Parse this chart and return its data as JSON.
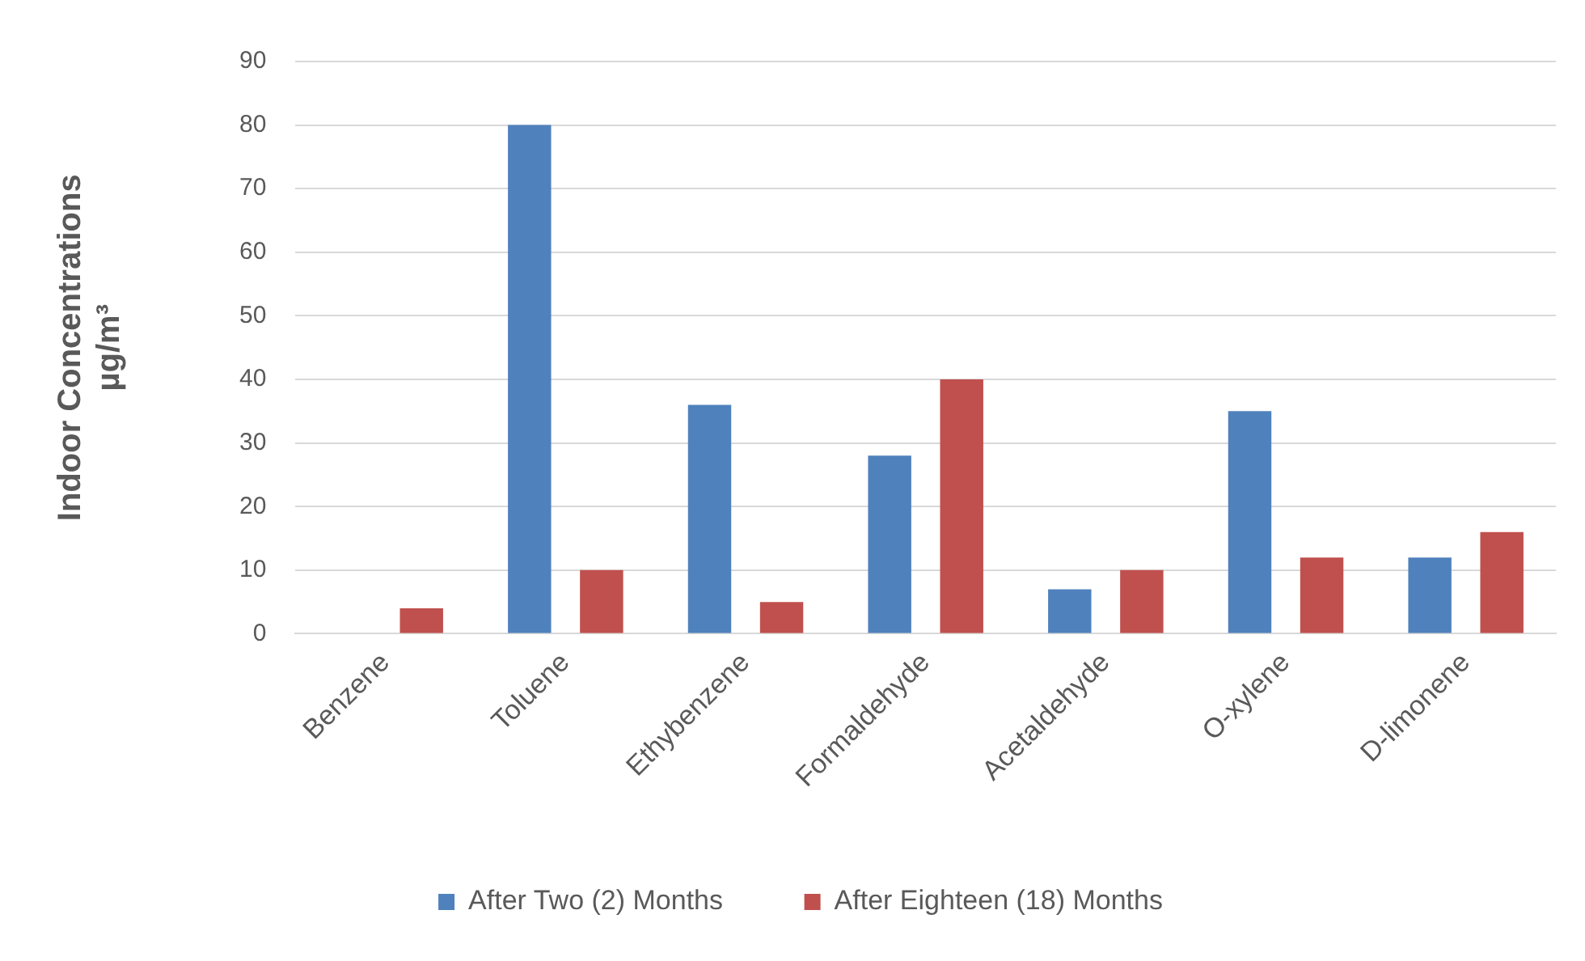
{
  "chart_data": {
    "type": "bar",
    "ylabel": "Indoor Concentrations\nµg/m³",
    "categories": [
      "Benzene",
      "Toluene",
      "Ethybenzene",
      "Formaldehyde",
      "Acetaldehyde",
      "O-xylene",
      "D-limonene"
    ],
    "series": [
      {
        "name": "After Two (2) Months",
        "color": "#4f81bd",
        "values": [
          null,
          80,
          36,
          28,
          7,
          35,
          12
        ]
      },
      {
        "name": "After Eighteen (18) Months",
        "color": "#c0504d",
        "values": [
          4,
          10,
          5,
          40,
          10,
          12,
          16
        ]
      }
    ],
    "ylim": [
      0,
      90
    ],
    "yticks": [
      0,
      10,
      20,
      30,
      40,
      50,
      60,
      70,
      80,
      90
    ],
    "grid": "y",
    "legend": "bottom"
  }
}
